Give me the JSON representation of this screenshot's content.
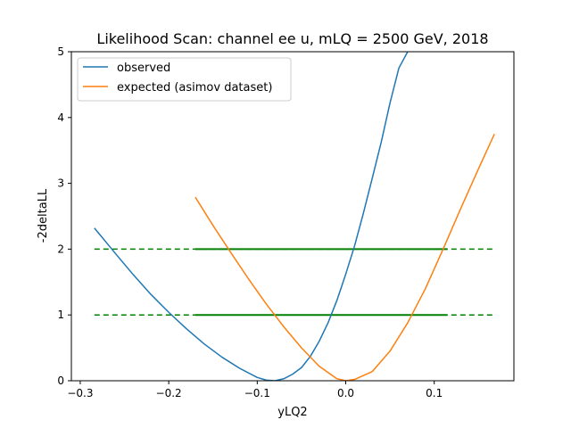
{
  "chart_data": {
    "type": "line",
    "title": "Likelihood Scan: channel ee u, mLQ = 2500 GeV, 2018",
    "xlabel": "yLQ2",
    "ylabel": "-2deltaLL",
    "xlim": [
      -0.31,
      0.19
    ],
    "ylim": [
      0,
      5
    ],
    "x_ticks": [
      -0.3,
      -0.2,
      -0.1,
      0.0,
      0.1
    ],
    "x_tick_labels": [
      "−0.3",
      "−0.2",
      "−0.1",
      "0.0",
      "0.1"
    ],
    "y_ticks": [
      0,
      1,
      2,
      3,
      4,
      5
    ],
    "y_tick_labels": [
      "0",
      "1",
      "2",
      "3",
      "4",
      "5"
    ],
    "grid": false,
    "legend_position": "top-left",
    "series": [
      {
        "name": "observed",
        "color": "#1f77b4",
        "x": [
          -0.284,
          -0.26,
          -0.24,
          -0.22,
          -0.2,
          -0.18,
          -0.16,
          -0.14,
          -0.12,
          -0.1,
          -0.09,
          -0.08,
          -0.07,
          -0.06,
          -0.05,
          -0.04,
          -0.03,
          -0.02,
          -0.01,
          0.0,
          0.01,
          0.02,
          0.03,
          0.04,
          0.05,
          0.06,
          0.07
        ],
        "y": [
          2.32,
          1.93,
          1.61,
          1.31,
          1.04,
          0.79,
          0.56,
          0.36,
          0.19,
          0.05,
          0.01,
          0.0,
          0.03,
          0.1,
          0.2,
          0.37,
          0.6,
          0.88,
          1.22,
          1.62,
          2.05,
          2.55,
          3.08,
          3.62,
          4.22,
          4.75,
          5.0
        ]
      },
      {
        "name": "expected (asimov dataset)",
        "color": "#ff7f0e",
        "x": [
          -0.17,
          -0.15,
          -0.13,
          -0.11,
          -0.09,
          -0.07,
          -0.05,
          -0.03,
          -0.01,
          0.0,
          0.01,
          0.03,
          0.05,
          0.07,
          0.09,
          0.11,
          0.13,
          0.15,
          0.168
        ],
        "y": [
          2.79,
          2.36,
          1.95,
          1.55,
          1.17,
          0.82,
          0.5,
          0.22,
          0.03,
          0.0,
          0.02,
          0.14,
          0.45,
          0.88,
          1.4,
          2.0,
          2.62,
          3.22,
          3.75
        ]
      }
    ],
    "reference_lines": [
      {
        "y": 2,
        "x_dashed": [
          -0.284,
          0.168
        ],
        "x_solid": [
          -0.17,
          0.115
        ],
        "color": "#008000"
      },
      {
        "y": 1,
        "x_dashed": [
          -0.284,
          0.168
        ],
        "x_solid": [
          -0.17,
          0.115
        ],
        "color": "#008000"
      }
    ]
  }
}
